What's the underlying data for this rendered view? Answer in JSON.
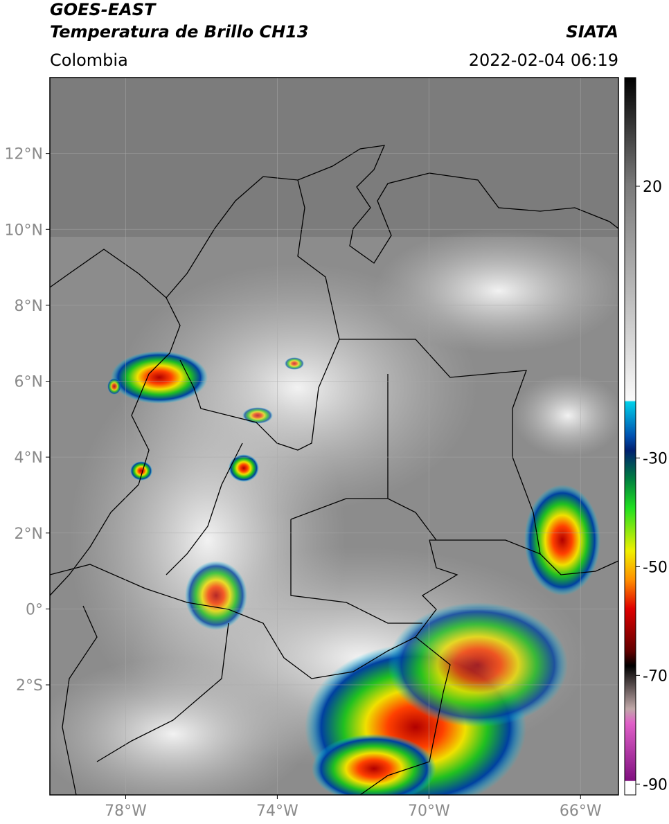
{
  "header": {
    "title": "GOES-EAST",
    "subtitle": "Temperatura de Brillo CH13",
    "source": "SIATA",
    "region": "Colombia",
    "datetime": "2022-02-04 06:19"
  },
  "map": {
    "xlim": [
      -80,
      -65
    ],
    "ylim": [
      -4.9,
      14
    ],
    "xticks": [
      {
        "value": -78,
        "label": "78°W"
      },
      {
        "value": -74,
        "label": "74°W"
      },
      {
        "value": -70,
        "label": "70°W"
      },
      {
        "value": -66,
        "label": "66°W"
      }
    ],
    "yticks": [
      {
        "value": 12,
        "label": "12°N"
      },
      {
        "value": 10,
        "label": "10°N"
      },
      {
        "value": 8,
        "label": "8°N"
      },
      {
        "value": 6,
        "label": "6°N"
      },
      {
        "value": 4,
        "label": "4°N"
      },
      {
        "value": 2,
        "label": "2°N"
      },
      {
        "value": 0,
        "label": "0°"
      },
      {
        "value": -2,
        "label": "2°S"
      }
    ]
  },
  "colorbar": {
    "lim": [
      -92,
      40
    ],
    "ticks": [
      20,
      -30,
      -50,
      -70,
      -90
    ]
  }
}
